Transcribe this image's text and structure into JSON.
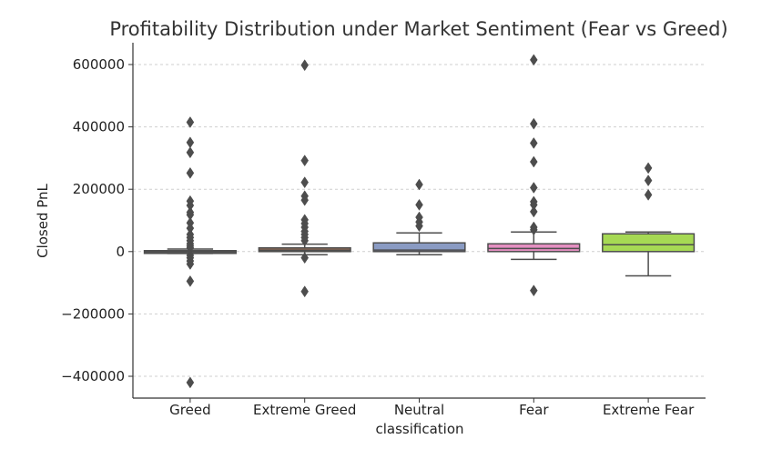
{
  "chart_data": {
    "type": "box",
    "title": "Profitability Distribution under Market Sentiment (Fear vs Greed)",
    "xlabel": "classification",
    "ylabel": "Closed PnL",
    "ylim": [
      -470000,
      670000
    ],
    "yticks": [
      600000,
      400000,
      200000,
      0,
      -200000,
      -400000
    ],
    "ytick_labels": [
      "600000",
      "400000",
      "200000",
      "0",
      "−200000",
      "−400000"
    ],
    "grid": "horizontal dashed",
    "categories": [
      "Greed",
      "Extreme Greed",
      "Neutral",
      "Fear",
      "Extreme Fear"
    ],
    "series": [
      {
        "category": "Greed",
        "color": "#5b5b5b",
        "whisker_low": -6000,
        "q1": -2000,
        "median": 0,
        "q3": 3000,
        "whisker_high": 8000,
        "outliers": [
          415000,
          350000,
          318000,
          252000,
          162000,
          148000,
          126000,
          118000,
          92000,
          75000,
          55000,
          45000,
          35000,
          25000,
          18000,
          12000,
          -12000,
          -20000,
          -30000,
          -40000,
          -95000,
          -420000
        ]
      },
      {
        "category": "Extreme Greed",
        "color": "#8d6a55",
        "whisker_low": -10000,
        "q1": 0,
        "median": 4000,
        "q3": 12000,
        "whisker_high": 24000,
        "outliers": [
          598000,
          292000,
          222000,
          178000,
          165000,
          102000,
          90000,
          78000,
          65000,
          55000,
          45000,
          35000,
          -20000,
          -128000
        ]
      },
      {
        "category": "Neutral",
        "color": "#8a9bc3",
        "whisker_low": -10000,
        "q1": 0,
        "median": 5000,
        "q3": 28000,
        "whisker_high": 60000,
        "outliers": [
          215000,
          150000,
          110000,
          95000,
          82000
        ]
      },
      {
        "category": "Fear",
        "color": "#e48fc1",
        "whisker_low": -25000,
        "q1": 0,
        "median": 10000,
        "q3": 25000,
        "whisker_high": 63000,
        "outliers": [
          615000,
          410000,
          348000,
          288000,
          205000,
          160000,
          150000,
          128000,
          78000,
          70000,
          -125000
        ]
      },
      {
        "category": "Extreme Fear",
        "color": "#a6d954",
        "whisker_low": -78000,
        "q1": 0,
        "median": 22000,
        "q3": 57000,
        "whisker_high": 63000,
        "outliers": [
          268000,
          228000,
          182000
        ]
      }
    ]
  }
}
